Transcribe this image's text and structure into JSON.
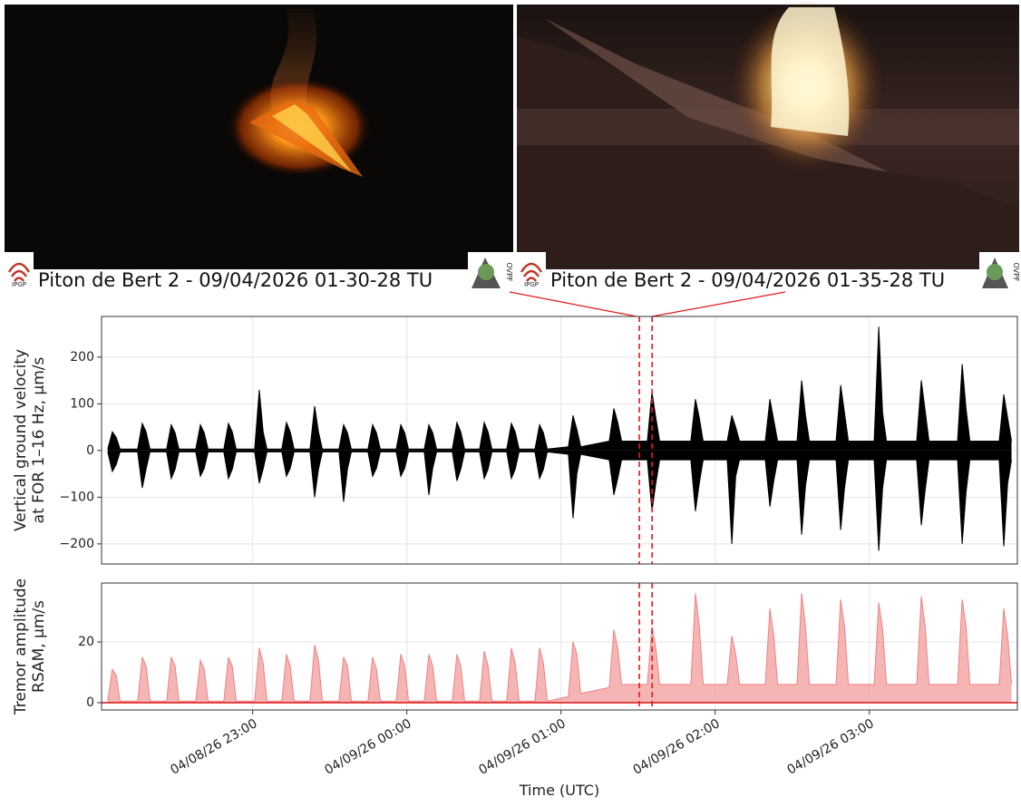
{
  "images": [
    {
      "caption": "Piton de Bert 2 - 09/04/2026 01-30-28 TU"
    },
    {
      "caption": "Piton de Bert 2 - 09/04/2026 01-35-28 TU"
    }
  ],
  "logos": [
    "IPGP",
    "OVPF"
  ],
  "chart_data": [
    {
      "type": "area",
      "ylabel": [
        "Vertical ground velocity",
        "at FOR 1–16 Hz, µm/s"
      ],
      "xlim": [
        22.02,
        27.96
      ],
      "ylim": [
        -243,
        287
      ],
      "yticks": [
        {
          "value": -200,
          "label": "−200"
        },
        {
          "value": -100,
          "label": "−100"
        },
        0,
        100,
        200
      ],
      "grid": true,
      "vlines": [
        25.508,
        25.591
      ],
      "vline_color": "#e41a1c",
      "x": [
        22.06,
        22.09,
        22.115,
        22.14,
        22.254,
        22.284,
        22.309,
        22.334,
        22.442,
        22.472,
        22.497,
        22.522,
        22.631,
        22.661,
        22.686,
        22.711,
        22.813,
        22.843,
        22.868,
        22.893,
        23.013,
        23.043,
        23.068,
        23.093,
        23.189,
        23.219,
        23.244,
        23.269,
        23.372,
        23.402,
        23.427,
        23.452,
        23.56,
        23.59,
        23.615,
        23.64,
        23.748,
        23.778,
        23.803,
        23.828,
        23.931,
        23.961,
        23.986,
        24.011,
        24.113,
        24.143,
        24.168,
        24.193,
        24.295,
        24.325,
        24.35,
        24.375,
        24.472,
        24.502,
        24.527,
        24.552,
        24.648,
        24.678,
        24.703,
        24.728,
        24.831,
        24.861,
        24.886,
        24.911,
        25.048,
        25.078,
        25.103,
        25.128,
        25.313,
        25.343,
        25.368,
        25.393,
        25.56,
        25.59,
        25.615,
        25.64,
        25.842,
        25.872,
        25.897,
        25.922,
        26.078,
        26.108,
        26.133,
        26.158,
        26.325,
        26.355,
        26.38,
        26.405,
        26.531,
        26.561,
        26.586,
        26.611,
        26.784,
        26.814,
        26.839,
        26.864,
        27.031,
        27.061,
        27.086,
        27.111,
        27.307,
        27.337,
        27.362,
        27.387,
        27.572,
        27.602,
        27.627,
        27.652,
        27.842,
        27.872,
        27.897,
        27.922
      ],
      "series": [
        {
          "color": "#000000",
          "values": [
            3,
            40,
            28,
            3,
            3,
            58,
            40,
            3,
            3,
            55,
            38,
            3,
            3,
            55,
            38,
            3,
            3,
            58,
            40,
            3,
            3,
            130,
            40,
            3,
            3,
            60,
            40,
            3,
            3,
            95,
            40,
            3,
            3,
            55,
            38,
            3,
            3,
            55,
            38,
            3,
            3,
            55,
            38,
            3,
            3,
            55,
            38,
            3,
            3,
            60,
            40,
            3,
            3,
            60,
            40,
            3,
            3,
            58,
            40,
            3,
            3,
            55,
            38,
            3,
            8,
            75,
            45,
            8,
            20,
            90,
            60,
            20,
            20,
            125,
            70,
            20,
            20,
            110,
            70,
            20,
            20,
            75,
            50,
            20,
            20,
            110,
            65,
            20,
            20,
            150,
            75,
            20,
            20,
            140,
            80,
            20,
            20,
            265,
            80,
            20,
            20,
            150,
            85,
            20,
            20,
            185,
            90,
            20,
            20,
            120,
            70,
            20
          ]
        },
        {
          "color": "#000000",
          "values": [
            -3,
            -45,
            -30,
            -3,
            -3,
            -80,
            -40,
            -3,
            -3,
            -60,
            -40,
            -3,
            -3,
            -55,
            -38,
            -3,
            -3,
            -60,
            -40,
            -3,
            -3,
            -70,
            -40,
            -3,
            -3,
            -55,
            -38,
            -3,
            -3,
            -100,
            -40,
            -3,
            -3,
            -110,
            -40,
            -3,
            -3,
            -55,
            -38,
            -3,
            -3,
            -55,
            -38,
            -3,
            -3,
            -95,
            -38,
            -3,
            -3,
            -65,
            -40,
            -3,
            -3,
            -60,
            -40,
            -3,
            -3,
            -60,
            -40,
            -3,
            -3,
            -60,
            -40,
            -3,
            -8,
            -145,
            -50,
            -8,
            -20,
            -95,
            -60,
            -20,
            -20,
            -130,
            -70,
            -20,
            -20,
            -130,
            -70,
            -20,
            -20,
            -200,
            -55,
            -20,
            -20,
            -120,
            -65,
            -20,
            -20,
            -180,
            -75,
            -20,
            -20,
            -170,
            -80,
            -20,
            -20,
            -215,
            -80,
            -20,
            -20,
            -160,
            -85,
            -20,
            -20,
            -200,
            -90,
            -20,
            -20,
            -205,
            -70,
            -20
          ]
        }
      ]
    },
    {
      "type": "area",
      "ylabel": [
        "Tremor amplitude",
        "RSAM, µm/s"
      ],
      "xlabel": "Time (UTC)",
      "xlim": [
        22.02,
        27.96
      ],
      "ylim": [
        -2.4,
        39.4
      ],
      "yticks": [
        0,
        20
      ],
      "xticks": [
        {
          "value": 23,
          "label": "04/08/26 23:00"
        },
        {
          "value": 24,
          "label": "04/09/26 00:00"
        },
        {
          "value": 25,
          "label": "04/09/26 01:00"
        },
        {
          "value": 26,
          "label": "04/09/26 02:00"
        },
        {
          "value": 27,
          "label": "04/09/26 03:00"
        }
      ],
      "grid": true,
      "x": [
        22.06,
        22.09,
        22.115,
        22.14,
        22.254,
        22.284,
        22.309,
        22.334,
        22.442,
        22.472,
        22.497,
        22.522,
        22.631,
        22.661,
        22.686,
        22.711,
        22.813,
        22.843,
        22.868,
        22.893,
        23.013,
        23.043,
        23.068,
        23.093,
        23.189,
        23.219,
        23.244,
        23.269,
        23.372,
        23.402,
        23.427,
        23.452,
        23.56,
        23.59,
        23.615,
        23.64,
        23.748,
        23.778,
        23.803,
        23.828,
        23.931,
        23.961,
        23.986,
        24.011,
        24.113,
        24.143,
        24.168,
        24.193,
        24.295,
        24.325,
        24.35,
        24.375,
        24.472,
        24.502,
        24.527,
        24.552,
        24.648,
        24.678,
        24.703,
        24.728,
        24.831,
        24.861,
        24.886,
        24.911,
        25.048,
        25.078,
        25.103,
        25.128,
        25.313,
        25.343,
        25.368,
        25.393,
        25.56,
        25.59,
        25.615,
        25.64,
        25.842,
        25.872,
        25.897,
        25.922,
        26.078,
        26.108,
        26.133,
        26.158,
        26.325,
        26.355,
        26.38,
        26.405,
        26.531,
        26.561,
        26.586,
        26.611,
        26.784,
        26.814,
        26.839,
        26.864,
        27.031,
        27.061,
        27.086,
        27.111,
        27.307,
        27.337,
        27.362,
        27.387,
        27.572,
        27.602,
        27.627,
        27.652,
        27.842,
        27.872,
        27.897,
        27.922
      ],
      "series": [
        {
          "color": "#f4a3a3",
          "values": [
            0.5,
            11,
            9,
            0.5,
            0.5,
            15,
            12,
            0.5,
            0.5,
            15,
            12,
            0.5,
            0.5,
            14,
            11,
            0.5,
            0.5,
            15,
            12,
            0.5,
            0.5,
            18,
            13,
            0.5,
            0.5,
            16,
            12,
            0.5,
            0.5,
            19,
            14,
            0.5,
            0.5,
            15,
            12,
            0.5,
            0.5,
            15,
            11,
            0.5,
            0.5,
            16,
            12,
            0.5,
            0.5,
            16,
            12,
            0.5,
            0.5,
            16,
            12,
            0.5,
            0.5,
            17,
            12,
            0.5,
            0.5,
            18,
            13,
            0.5,
            0.5,
            18,
            13,
            0.5,
            2,
            20,
            16,
            3,
            5,
            24,
            18,
            6,
            6,
            25,
            18,
            6,
            6,
            36,
            25,
            6,
            6,
            22,
            16,
            6,
            6,
            31,
            22,
            6,
            6,
            36,
            25,
            6,
            6,
            34,
            25,
            6,
            6,
            33,
            24,
            6,
            6,
            35,
            25,
            6,
            6,
            34,
            25,
            6,
            6,
            31,
            22,
            6
          ]
        }
      ]
    }
  ]
}
